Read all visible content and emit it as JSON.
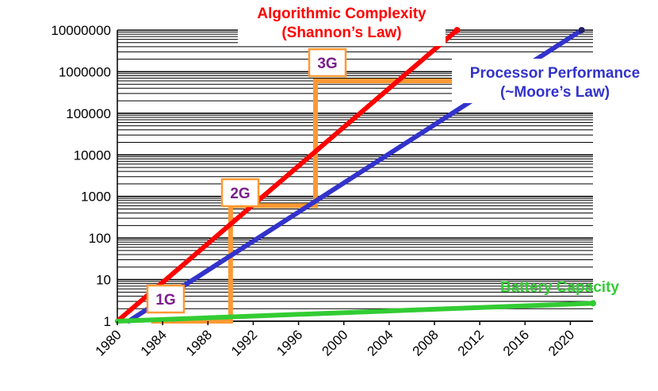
{
  "chart_data": {
    "type": "line",
    "title": "",
    "xlabel": "",
    "ylabel": "",
    "y_scale": "log",
    "xlim": [
      1980,
      2022
    ],
    "ylim": [
      1,
      10000000
    ],
    "x_ticks": [
      "1980",
      "1984",
      "1988",
      "1992",
      "1996",
      "2000",
      "2004",
      "2008",
      "2012",
      "2016",
      "2020"
    ],
    "y_ticks": [
      "1",
      "10",
      "100",
      "1000",
      "10000",
      "100000",
      "1000000",
      "10000000"
    ],
    "grid": true,
    "series": [
      {
        "name": "Algorithmic Complexity (Shannon’s Law)",
        "color": "#ff0000",
        "points": [
          [
            1980,
            1
          ],
          [
            2010,
            10000000
          ]
        ]
      },
      {
        "name": "Processor Performance (~Moore’s Law)",
        "color": "#3333cc",
        "points": [
          [
            1981,
            1
          ],
          [
            2021,
            10000000
          ]
        ]
      },
      {
        "name": "Battery Capacity",
        "color": "#33cc33",
        "points": [
          [
            1980,
            1
          ],
          [
            2022,
            2.7
          ]
        ]
      }
    ],
    "generations": {
      "color": "#ff9933",
      "steps": [
        {
          "label": "1G",
          "x_start": 1983,
          "x_end": 1990,
          "value": 1
        },
        {
          "label": "2G",
          "x_start": 1990,
          "x_end": 1997.5,
          "value": 600
        },
        {
          "label": "3G",
          "x_start": 1997.5,
          "x_end": 2010,
          "value": 600000
        }
      ]
    },
    "annotations": [
      {
        "lines": [
          "Algorithmic Complexity",
          "(Shannon’s Law)"
        ],
        "color": "#ff0000"
      },
      {
        "lines": [
          "Processor Performance",
          "(~Moore’s Law)"
        ],
        "color": "#3333cc"
      },
      {
        "lines": [
          "Battery Capacity"
        ],
        "color": "#33cc33"
      }
    ]
  }
}
